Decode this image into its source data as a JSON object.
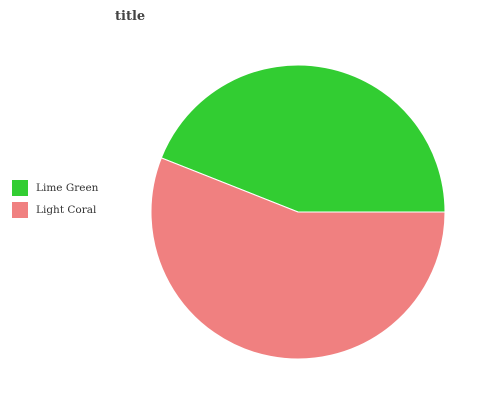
{
  "chart_data": {
    "type": "pie",
    "title": "title",
    "categories": [
      "Lime Green",
      "Light Coral"
    ],
    "values": [
      44,
      56
    ],
    "colors": [
      "#32cd32",
      "#f08080"
    ],
    "legend_position": "left",
    "start_angle_deg": 90,
    "direction": "clockwise"
  }
}
